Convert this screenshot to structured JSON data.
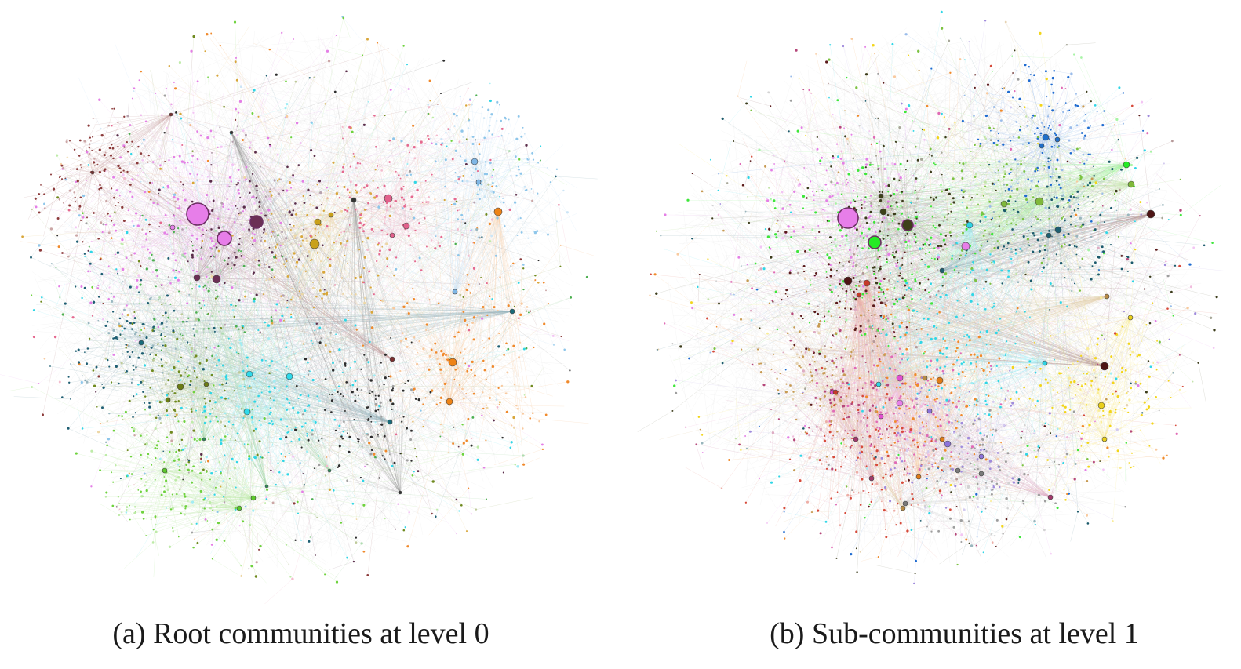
{
  "figure": {
    "panels": [
      {
        "id": "a",
        "caption": "(a) Root communities at level 0",
        "communities": [
          {
            "color": "#e47fe6",
            "hub_color": "#e77ee9",
            "weight": 1.0
          },
          {
            "color": "#5a2d4a",
            "hub_color": "#6b2f55",
            "weight": 0.5
          },
          {
            "color": "#d8a63a",
            "hub_color": "#c9a11a",
            "weight": 0.55
          },
          {
            "color": "#e5698f",
            "hub_color": "#e2618c",
            "weight": 0.45
          },
          {
            "color": "#f0892b",
            "hub_color": "#ee8316",
            "weight": 0.55
          },
          {
            "color": "#8ec6ea",
            "hub_color": "#7fb6e5",
            "weight": 0.5
          },
          {
            "color": "#2fd6e6",
            "hub_color": "#2fd9ea",
            "weight": 0.9
          },
          {
            "color": "#6f8a1f",
            "hub_color": "#6b7c14",
            "weight": 0.45
          },
          {
            "color": "#6ed23d",
            "hub_color": "#5cc92b",
            "weight": 0.6
          },
          {
            "color": "#1e5e72",
            "hub_color": "#186b7a",
            "weight": 0.4
          },
          {
            "color": "#8b3a3a",
            "hub_color": "#7a2f2f",
            "weight": 0.35
          },
          {
            "color": "#2c2c2c",
            "hub_color": "#333333",
            "weight": 0.35
          },
          {
            "color": "#4caf50",
            "hub_color": "#2e8b57",
            "weight": 0.3
          }
        ]
      },
      {
        "id": "b",
        "caption": "(b) Sub-communities at level 1",
        "communities": [
          {
            "color": "#e47fe6",
            "hub_color": "#e77ee9",
            "weight": 0.6
          },
          {
            "color": "#3ee63a",
            "hub_color": "#25ea25",
            "weight": 0.7
          },
          {
            "color": "#3b3b1a",
            "hub_color": "#3d4119",
            "weight": 0.6
          },
          {
            "color": "#1e6bd0",
            "hub_color": "#1f6ec9",
            "weight": 0.4
          },
          {
            "color": "#7cc242",
            "hub_color": "#7fb83a",
            "weight": 0.5
          },
          {
            "color": "#5a1a1a",
            "hub_color": "#4d1414",
            "weight": 0.4
          },
          {
            "color": "#2fd6e6",
            "hub_color": "#2ed3e3",
            "weight": 0.8
          },
          {
            "color": "#f2d51a",
            "hub_color": "#e9cf1a",
            "weight": 0.45
          },
          {
            "color": "#e06bb6",
            "hub_color": "#e24fd0",
            "weight": 0.55
          },
          {
            "color": "#f08a2a",
            "hub_color": "#e07b16",
            "weight": 0.5
          },
          {
            "color": "#1b5a6b",
            "hub_color": "#1e5f70",
            "weight": 0.45
          },
          {
            "color": "#d64a3a",
            "hub_color": "#c63a2a",
            "weight": 0.45
          },
          {
            "color": "#a08bdc",
            "hub_color": "#8c72db",
            "weight": 0.35
          },
          {
            "color": "#9e9e9e",
            "hub_color": "#7a7a7a",
            "weight": 0.35
          },
          {
            "color": "#b5477a",
            "hub_color": "#a3386c",
            "weight": 0.35
          },
          {
            "color": "#c79a52",
            "hub_color": "#b78b45",
            "weight": 0.35
          }
        ]
      }
    ]
  }
}
